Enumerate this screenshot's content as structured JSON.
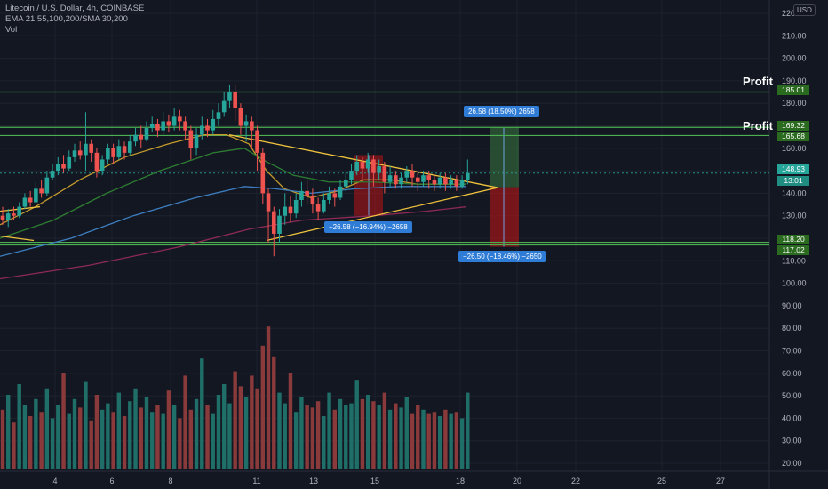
{
  "header": {
    "symbol_line": "Litecoin / U.S. Dollar, 4h, COINBASE",
    "indicator_line": "EMA 21,55,100,200/SMA 30,200",
    "volume_label": "Vol",
    "currency": "USD"
  },
  "price_tags": {
    "p185": "185.01",
    "p169": "169.32",
    "p165": "165.68",
    "p148": "148.93",
    "countdown": "13:01",
    "p118": "118.20",
    "p117": "117.02"
  },
  "annotations": {
    "profit_top": "Profit",
    "profit_mid": "Profit",
    "long_measure": "26.58 (18.50%) 2658",
    "short_measure": "−26.50 (−18.46%) −2650",
    "pattern_measure": "−26.58 (−16.94%) −2658"
  },
  "colors": {
    "background": "#131722",
    "up": "#26a69a",
    "down": "#ef5350",
    "level_line": "#4caf50",
    "triangle": "#f0c33c",
    "ema_short": "#c49a2c",
    "ema_mid": "#2e7d32",
    "ema_long": "#3d7fc1",
    "ema_200": "#8e2a55"
  },
  "chart_data": {
    "type": "candlestick",
    "timeframe": "4h",
    "x_tick_labels": [
      "4",
      "6",
      "8",
      "11",
      "13",
      "15",
      "18",
      "20",
      "22",
      "25",
      "27"
    ],
    "y_tick_labels": [
      "220.00",
      "210.00",
      "200.00",
      "190.00",
      "180.00",
      "170.00",
      "160.00",
      "150.00",
      "140.00",
      "130.00",
      "120.00",
      "110.00",
      "100.00",
      "90.00",
      "80.00",
      "70.00",
      "60.00",
      "50.00",
      "40.00",
      "30.00",
      "20.00"
    ],
    "horizontal_levels": [
      185.01,
      169.32,
      165.68,
      118.2,
      117.02
    ],
    "last_price": 148.93,
    "candles": [
      [
        130,
        128,
        134,
        126
      ],
      [
        128,
        131,
        133,
        125
      ],
      [
        131,
        130,
        134,
        128
      ],
      [
        130,
        134,
        136,
        129
      ],
      [
        134,
        138,
        140,
        133
      ],
      [
        138,
        136,
        141,
        134
      ],
      [
        136,
        142,
        145,
        135
      ],
      [
        142,
        140,
        146,
        138
      ],
      [
        140,
        147,
        150,
        139
      ],
      [
        147,
        150,
        153,
        146
      ],
      [
        150,
        153,
        156,
        148
      ],
      [
        153,
        151,
        157,
        149
      ],
      [
        151,
        156,
        159,
        150
      ],
      [
        156,
        159,
        162,
        154
      ],
      [
        159,
        157,
        163,
        155
      ],
      [
        157,
        162,
        176,
        150
      ],
      [
        162,
        158,
        164,
        154
      ],
      [
        158,
        150,
        160,
        147
      ],
      [
        150,
        155,
        157,
        148
      ],
      [
        155,
        160,
        162,
        153
      ],
      [
        160,
        156,
        162,
        153
      ],
      [
        156,
        161,
        164,
        155
      ],
      [
        161,
        158,
        163,
        155
      ],
      [
        158,
        163,
        166,
        157
      ],
      [
        163,
        166,
        169,
        161
      ],
      [
        166,
        164,
        170,
        160
      ],
      [
        164,
        169,
        172,
        163
      ],
      [
        169,
        171,
        174,
        167
      ],
      [
        171,
        168,
        173,
        165
      ],
      [
        168,
        172,
        176,
        166
      ],
      [
        172,
        170,
        175,
        167
      ],
      [
        170,
        174,
        178,
        168
      ],
      [
        174,
        172,
        177,
        168
      ],
      [
        172,
        168,
        174,
        164
      ],
      [
        168,
        160,
        170,
        155
      ],
      [
        160,
        166,
        169,
        157
      ],
      [
        166,
        170,
        174,
        164
      ],
      [
        170,
        168,
        173,
        165
      ],
      [
        168,
        173,
        177,
        166
      ],
      [
        173,
        176,
        180,
        170
      ],
      [
        176,
        181,
        185,
        174
      ],
      [
        181,
        185,
        188,
        178
      ],
      [
        185,
        178,
        188,
        172
      ],
      [
        178,
        170,
        180,
        166
      ],
      [
        170,
        172,
        175,
        163
      ],
      [
        172,
        168,
        174,
        160
      ],
      [
        168,
        158,
        170,
        150
      ],
      [
        158,
        140,
        160,
        135
      ],
      [
        140,
        132,
        142,
        118
      ],
      [
        132,
        122,
        134,
        112
      ],
      [
        122,
        130,
        133,
        118
      ],
      [
        130,
        134,
        140,
        126
      ],
      [
        134,
        131,
        139,
        127
      ],
      [
        131,
        137,
        140,
        129
      ],
      [
        137,
        141,
        145,
        134
      ],
      [
        141,
        139,
        146,
        135
      ],
      [
        139,
        135,
        142,
        131
      ],
      [
        135,
        132,
        138,
        128
      ],
      [
        132,
        137,
        140,
        131
      ],
      [
        137,
        140,
        143,
        135
      ],
      [
        140,
        138,
        142,
        134
      ],
      [
        138,
        143,
        146,
        137
      ],
      [
        143,
        146,
        149,
        141
      ],
      [
        146,
        150,
        153,
        144
      ],
      [
        150,
        154,
        157,
        148
      ],
      [
        154,
        151,
        156,
        146
      ],
      [
        151,
        155,
        158,
        149
      ],
      [
        155,
        149,
        157,
        143
      ],
      [
        149,
        152,
        155,
        146
      ],
      [
        152,
        145,
        154,
        140
      ],
      [
        145,
        148,
        152,
        143
      ],
      [
        148,
        144,
        150,
        142
      ],
      [
        144,
        147,
        149,
        142
      ],
      [
        147,
        150,
        152,
        145
      ],
      [
        150,
        147,
        153,
        143
      ],
      [
        147,
        145,
        149,
        141
      ],
      [
        145,
        148,
        150,
        143
      ],
      [
        148,
        146,
        150,
        142
      ],
      [
        146,
        144,
        148,
        141
      ],
      [
        144,
        147,
        149,
        142
      ],
      [
        147,
        144,
        149,
        141
      ],
      [
        144,
        146,
        148,
        142
      ],
      [
        146,
        143,
        148,
        141
      ],
      [
        143,
        146,
        148,
        142
      ],
      [
        146,
        149,
        155,
        144
      ]
    ],
    "volume": [
      28,
      35,
      22,
      40,
      30,
      25,
      33,
      27,
      38,
      24,
      30,
      45,
      26,
      33,
      29,
      41,
      23,
      35,
      28,
      31,
      27,
      36,
      25,
      32,
      38,
      29,
      34,
      27,
      30,
      26,
      37,
      30,
      24,
      44,
      28,
      33,
      52,
      30,
      26,
      35,
      40,
      31,
      46,
      39,
      34,
      44,
      38,
      58,
      67,
      53,
      36,
      31,
      45,
      27,
      34,
      30,
      29,
      32,
      25,
      36,
      28,
      33,
      30,
      31,
      42,
      33,
      35,
      32,
      30,
      36,
      28,
      31,
      29,
      34,
      26,
      30,
      28,
      26,
      27,
      25,
      28,
      26,
      27,
      24,
      36
    ]
  }
}
